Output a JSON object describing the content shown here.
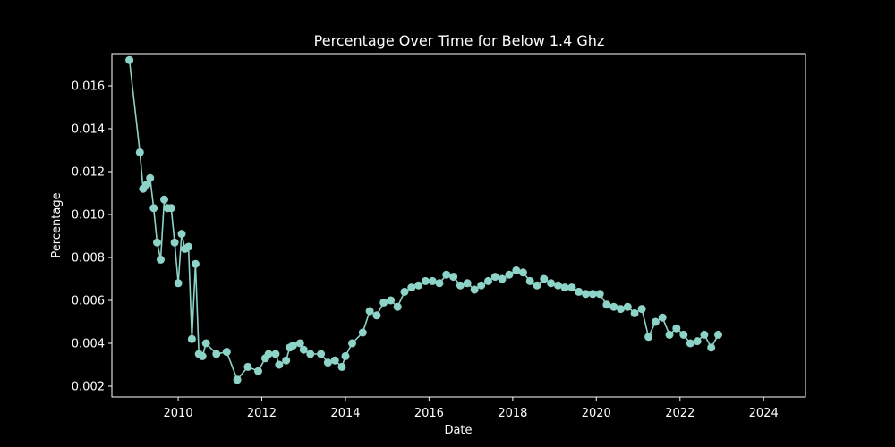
{
  "chart_data": {
    "type": "line",
    "title": "Percentage Over Time for Below 1.4 Ghz",
    "xlabel": "Date",
    "ylabel": "Percentage",
    "xlim": [
      "2008-06-01",
      "2025-01-01"
    ],
    "ylim": [
      0.0015,
      0.0175
    ],
    "x_ticks": [
      {
        "label": "2010",
        "date": "2010-01-01"
      },
      {
        "label": "2012",
        "date": "2012-01-01"
      },
      {
        "label": "2014",
        "date": "2014-01-01"
      },
      {
        "label": "2016",
        "date": "2016-01-01"
      },
      {
        "label": "2018",
        "date": "2018-01-01"
      },
      {
        "label": "2020",
        "date": "2020-01-01"
      },
      {
        "label": "2022",
        "date": "2022-01-01"
      },
      {
        "label": "2024",
        "date": "2024-01-01"
      }
    ],
    "y_ticks": [
      "0.002",
      "0.004",
      "0.006",
      "0.008",
      "0.010",
      "0.012",
      "0.014",
      "0.016"
    ],
    "grid": false,
    "line_color": "#8dd3c7",
    "background": "#000000",
    "foreground": "#ffffff",
    "series": [
      {
        "marker": "circle",
        "points": [
          [
            "2008-11-01",
            0.0172
          ],
          [
            "2009-02-01",
            0.0129
          ],
          [
            "2009-03-01",
            0.0112
          ],
          [
            "2009-04-01",
            0.0114
          ],
          [
            "2009-05-01",
            0.0117
          ],
          [
            "2009-06-01",
            0.0103
          ],
          [
            "2009-07-01",
            0.0087
          ],
          [
            "2009-08-01",
            0.0079
          ],
          [
            "2009-09-01",
            0.0107
          ],
          [
            "2009-10-01",
            0.0103
          ],
          [
            "2009-11-01",
            0.0103
          ],
          [
            "2009-12-01",
            0.0087
          ],
          [
            "2010-01-01",
            0.0068
          ],
          [
            "2010-02-01",
            0.0091
          ],
          [
            "2010-03-01",
            0.0084
          ],
          [
            "2010-04-01",
            0.0085
          ],
          [
            "2010-05-01",
            0.0042
          ],
          [
            "2010-06-01",
            0.0077
          ],
          [
            "2010-07-01",
            0.0035
          ],
          [
            "2010-08-01",
            0.0034
          ],
          [
            "2010-09-01",
            0.004
          ],
          [
            "2010-12-01",
            0.0035
          ],
          [
            "2011-03-01",
            0.0036
          ],
          [
            "2011-06-01",
            0.0023
          ],
          [
            "2011-09-01",
            0.0029
          ],
          [
            "2011-12-01",
            0.0027
          ],
          [
            "2012-02-01",
            0.0033
          ],
          [
            "2012-03-01",
            0.0035
          ],
          [
            "2012-05-01",
            0.0035
          ],
          [
            "2012-06-01",
            0.003
          ],
          [
            "2012-08-01",
            0.0032
          ],
          [
            "2012-09-01",
            0.0038
          ],
          [
            "2012-10-01",
            0.0039
          ],
          [
            "2012-12-01",
            0.004
          ],
          [
            "2013-01-01",
            0.0037
          ],
          [
            "2013-03-01",
            0.0035
          ],
          [
            "2013-06-01",
            0.0035
          ],
          [
            "2013-08-01",
            0.0031
          ],
          [
            "2013-10-01",
            0.0032
          ],
          [
            "2013-12-01",
            0.0029
          ],
          [
            "2014-01-01",
            0.0034
          ],
          [
            "2014-03-01",
            0.004
          ],
          [
            "2014-06-01",
            0.0045
          ],
          [
            "2014-08-01",
            0.0055
          ],
          [
            "2014-10-01",
            0.0053
          ],
          [
            "2014-12-01",
            0.0059
          ],
          [
            "2015-02-01",
            0.006
          ],
          [
            "2015-04-01",
            0.0057
          ],
          [
            "2015-06-01",
            0.0064
          ],
          [
            "2015-08-01",
            0.0066
          ],
          [
            "2015-10-01",
            0.0067
          ],
          [
            "2015-12-01",
            0.0069
          ],
          [
            "2016-02-01",
            0.0069
          ],
          [
            "2016-04-01",
            0.0068
          ],
          [
            "2016-06-01",
            0.0072
          ],
          [
            "2016-08-01",
            0.0071
          ],
          [
            "2016-10-01",
            0.0067
          ],
          [
            "2016-12-01",
            0.0068
          ],
          [
            "2017-02-01",
            0.0065
          ],
          [
            "2017-04-01",
            0.0067
          ],
          [
            "2017-06-01",
            0.0069
          ],
          [
            "2017-08-01",
            0.0071
          ],
          [
            "2017-10-01",
            0.007
          ],
          [
            "2017-12-01",
            0.0072
          ],
          [
            "2018-02-01",
            0.0074
          ],
          [
            "2018-04-01",
            0.0073
          ],
          [
            "2018-06-01",
            0.0069
          ],
          [
            "2018-08-01",
            0.0067
          ],
          [
            "2018-10-01",
            0.007
          ],
          [
            "2018-12-01",
            0.0068
          ],
          [
            "2019-02-01",
            0.0067
          ],
          [
            "2019-04-01",
            0.0066
          ],
          [
            "2019-06-01",
            0.0066
          ],
          [
            "2019-08-01",
            0.0064
          ],
          [
            "2019-10-01",
            0.0063
          ],
          [
            "2019-12-01",
            0.0063
          ],
          [
            "2020-02-01",
            0.0063
          ],
          [
            "2020-04-01",
            0.0058
          ],
          [
            "2020-06-01",
            0.0057
          ],
          [
            "2020-08-01",
            0.0056
          ],
          [
            "2020-10-01",
            0.0057
          ],
          [
            "2020-12-01",
            0.0054
          ],
          [
            "2021-02-01",
            0.0056
          ],
          [
            "2021-04-01",
            0.0043
          ],
          [
            "2021-06-01",
            0.005
          ],
          [
            "2021-08-01",
            0.0052
          ],
          [
            "2021-10-01",
            0.0044
          ],
          [
            "2021-12-01",
            0.0047
          ],
          [
            "2022-02-01",
            0.0044
          ],
          [
            "2022-04-01",
            0.004
          ],
          [
            "2022-06-01",
            0.0041
          ],
          [
            "2022-08-01",
            0.0044
          ],
          [
            "2022-10-01",
            0.0038
          ],
          [
            "2022-12-01",
            0.0044
          ]
        ]
      }
    ]
  }
}
